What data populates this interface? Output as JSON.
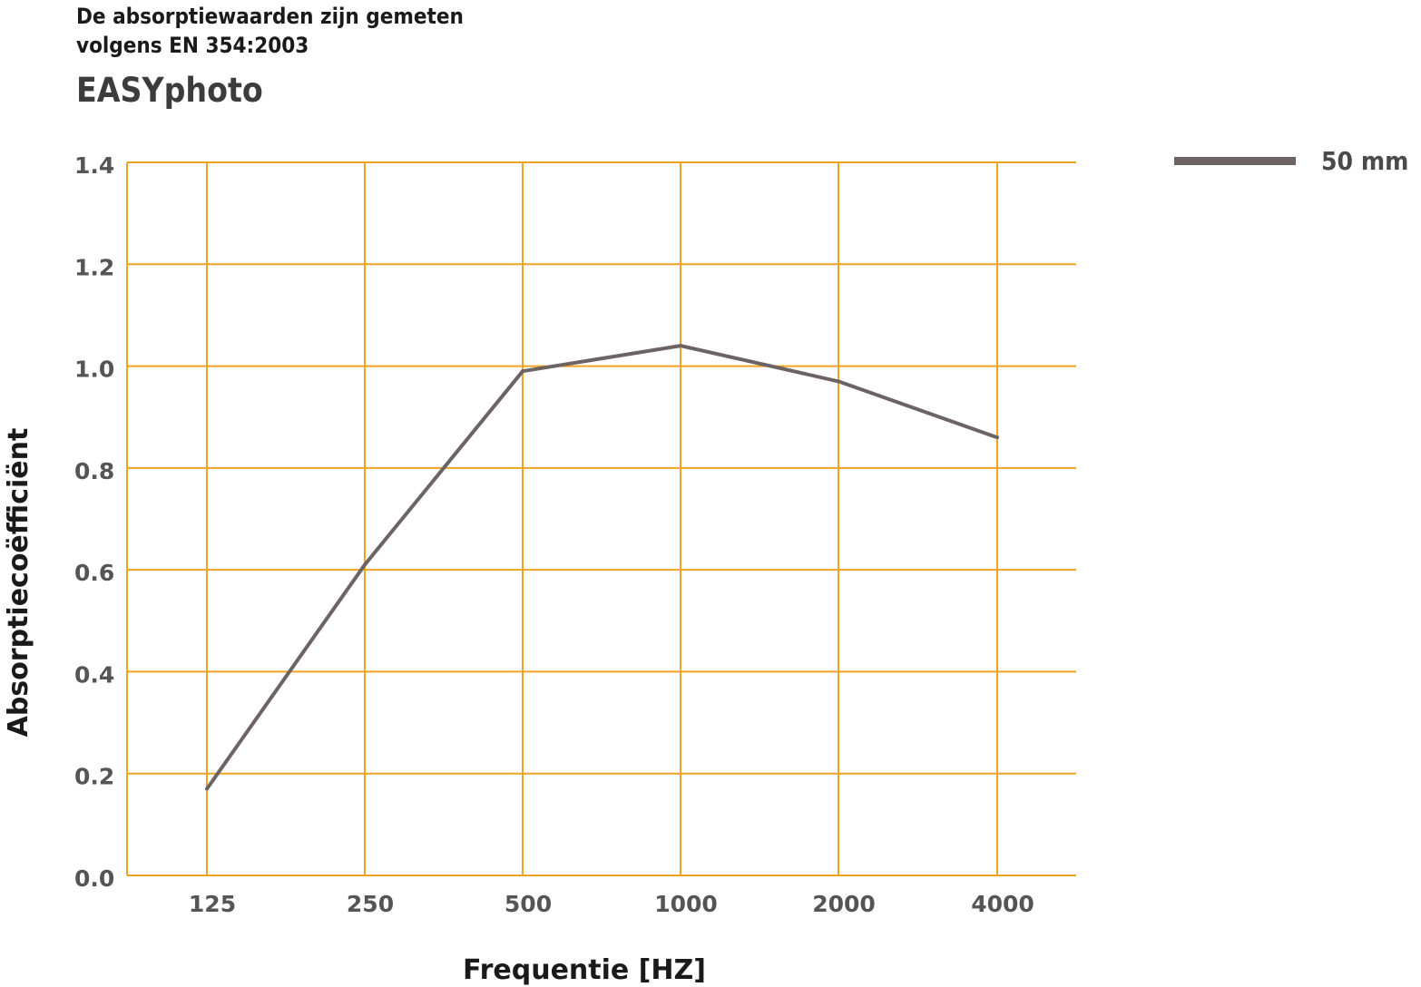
{
  "header": {
    "note_line1": "De absorptiewaarden zijn gemeten",
    "note_line2": "volgens EN 354:2003"
  },
  "chart_data": {
    "type": "line",
    "title": "EASYphoto",
    "xlabel": "Frequentie [HZ]",
    "ylabel": "Absorptiecoëfficiënt",
    "categories": [
      "125",
      "250",
      "500",
      "1000",
      "2000",
      "4000"
    ],
    "series": [
      {
        "name": "50 mm",
        "values": [
          0.17,
          0.61,
          0.99,
          1.04,
          0.97,
          0.86
        ]
      }
    ],
    "ylim": [
      0.0,
      1.4
    ],
    "yticks": [
      "0.0",
      "0.2",
      "0.4",
      "0.6",
      "0.8",
      "1.0",
      "1.2",
      "1.4"
    ],
    "grid": true,
    "legend": "top-right",
    "colors": {
      "grid": "#f0a323",
      "line": "#6b6463",
      "tick_text": "#555555"
    }
  }
}
